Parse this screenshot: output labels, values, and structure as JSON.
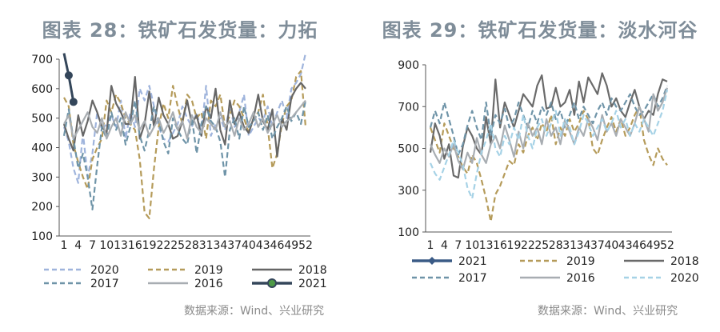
{
  "chart_data": [
    {
      "type": "line",
      "title": "图表 28：铁矿石发货量：力拓",
      "ylim": [
        100,
        700
      ],
      "yticks": [
        100,
        200,
        300,
        400,
        500,
        600,
        700
      ],
      "xticks": [
        "1",
        "4",
        "7",
        "10",
        "13",
        "16",
        "19",
        "22",
        "25",
        "28",
        "31",
        "34",
        "37",
        "40",
        "43",
        "46",
        "49",
        "52"
      ],
      "grid": false,
      "legend_position": "bottom",
      "source": "数据来源：Wind、兴业研究",
      "series": [
        {
          "name": "2020",
          "color": "#9fb4dc",
          "style": "dashed",
          "marker": false,
          "values": [
            470,
            420,
            330,
            280,
            450,
            300,
            380,
            520,
            460,
            480,
            510,
            470,
            560,
            430,
            520,
            470,
            600,
            560,
            610,
            540,
            470,
            430,
            420,
            450,
            480,
            540,
            500,
            470,
            520,
            450,
            610,
            440,
            480,
            500,
            460,
            540,
            470,
            520,
            580,
            440,
            470,
            500,
            490,
            540,
            470,
            520,
            560,
            500,
            600,
            620,
            650,
            720
          ]
        },
        {
          "name": "2019",
          "color": "#b59b5a",
          "style": "dashed",
          "marker": false,
          "values": [
            570,
            540,
            410,
            350,
            300,
            260,
            360,
            400,
            430,
            560,
            520,
            580,
            550,
            500,
            480,
            460,
            360,
            180,
            160,
            330,
            470,
            550,
            500,
            610,
            540,
            480,
            580,
            560,
            500,
            520,
            430,
            560,
            540,
            580,
            470,
            510,
            560,
            540,
            500,
            450,
            500,
            520,
            580,
            470,
            330,
            380,
            480,
            540,
            560,
            640,
            660,
            470
          ]
        },
        {
          "name": "2018",
          "color": "#666666",
          "style": "solid",
          "marker": false,
          "values": [
            480,
            430,
            390,
            510,
            440,
            490,
            560,
            520,
            470,
            450,
            610,
            550,
            520,
            480,
            480,
            640,
            430,
            480,
            590,
            470,
            570,
            510,
            480,
            430,
            440,
            490,
            560,
            480,
            510,
            440,
            540,
            500,
            600,
            460,
            410,
            560,
            480,
            520,
            470,
            450,
            500,
            580,
            490,
            460,
            530,
            370,
            500,
            460,
            570,
            600,
            620,
            600
          ]
        },
        {
          "name": "2017",
          "color": "#6f94a8",
          "style": "dashed",
          "marker": false,
          "values": [
            440,
            530,
            430,
            330,
            380,
            300,
            190,
            340,
            470,
            430,
            520,
            460,
            500,
            410,
            470,
            560,
            440,
            390,
            460,
            540,
            490,
            420,
            380,
            500,
            460,
            430,
            410,
            500,
            380,
            480,
            540,
            490,
            470,
            420,
            300,
            460,
            500,
            430,
            540,
            470,
            490,
            520,
            460,
            510,
            430,
            470,
            500,
            540,
            490,
            520,
            480,
            560
          ]
        },
        {
          "name": "2016",
          "color": "#a8adb2",
          "style": "solid",
          "marker": false,
          "values": [
            480,
            510,
            430,
            460,
            490,
            520,
            470,
            450,
            500,
            430,
            470,
            500,
            440,
            520,
            480,
            510,
            460,
            490,
            440,
            470,
            500,
            450,
            480,
            520,
            460,
            490,
            430,
            510,
            470,
            450,
            500,
            480,
            460,
            520,
            470,
            490,
            440,
            500,
            460,
            480,
            520,
            470,
            500,
            450,
            480,
            510,
            470,
            490,
            500,
            520,
            540,
            560
          ]
        },
        {
          "name": "2021",
          "color": "#34465a",
          "style": "solid",
          "marker": true,
          "values": [
            720,
            645,
            555
          ]
        }
      ]
    },
    {
      "type": "line",
      "title": "图表 29：铁矿石发货量：淡水河谷",
      "ylim": [
        100,
        900
      ],
      "yticks": [
        100,
        300,
        500,
        700,
        900
      ],
      "xticks": [
        "1",
        "4",
        "7",
        "10",
        "13",
        "16",
        "19",
        "22",
        "25",
        "28",
        "31",
        "34",
        "37",
        "40",
        "43",
        "46",
        "49",
        "52"
      ],
      "grid": false,
      "legend_position": "bottom",
      "source": "数据来源：Wind、兴业研究",
      "series": [
        {
          "name": "2021",
          "color": "#3a5b86",
          "style": "solid",
          "marker": true,
          "values": []
        },
        {
          "name": "2019",
          "color": "#b59b5a",
          "style": "dashed",
          "marker": false,
          "values": [
            600,
            540,
            480,
            620,
            560,
            500,
            460,
            410,
            380,
            470,
            430,
            350,
            260,
            150,
            280,
            320,
            380,
            440,
            420,
            520,
            480,
            560,
            600,
            540,
            620,
            580,
            660,
            520,
            600,
            560,
            640,
            580,
            620,
            680,
            640,
            500,
            470,
            540,
            600,
            650,
            580,
            640,
            560,
            600,
            660,
            700,
            540,
            470,
            420,
            500,
            450,
            420
          ]
        },
        {
          "name": "2018",
          "color": "#6a6a6a",
          "style": "solid",
          "marker": false,
          "values": [
            480,
            620,
            560,
            450,
            520,
            370,
            360,
            510,
            600,
            560,
            500,
            470,
            650,
            520,
            830,
            600,
            720,
            660,
            600,
            680,
            760,
            730,
            700,
            800,
            850,
            690,
            700,
            790,
            700,
            720,
            780,
            660,
            820,
            720,
            840,
            800,
            760,
            860,
            800,
            700,
            740,
            680,
            650,
            720,
            780,
            700,
            640,
            680,
            660,
            760,
            830,
            820
          ]
        },
        {
          "name": "2017",
          "color": "#6f94a8",
          "style": "dashed",
          "marker": false,
          "values": [
            600,
            680,
            620,
            720,
            640,
            560,
            470,
            520,
            610,
            680,
            600,
            540,
            720,
            560,
            660,
            620,
            690,
            600,
            640,
            720,
            660,
            600,
            680,
            620,
            700,
            660,
            720,
            640,
            680,
            600,
            660,
            720,
            640,
            700,
            660,
            620,
            680,
            720,
            660,
            740,
            700,
            680,
            720,
            760,
            700,
            660,
            680,
            720,
            760,
            700,
            740,
            800
          ]
        },
        {
          "name": "2016",
          "color": "#a8adb2",
          "style": "solid",
          "marker": false,
          "values": [
            520,
            470,
            430,
            500,
            460,
            520,
            440,
            400,
            480,
            430,
            550,
            470,
            430,
            520,
            560,
            500,
            610,
            540,
            460,
            580,
            500,
            620,
            560,
            600,
            520,
            640,
            560,
            600,
            520,
            640,
            580,
            520,
            600,
            560,
            640,
            600,
            540,
            660,
            580,
            620,
            560,
            640,
            600,
            560,
            620,
            700,
            640,
            580,
            760,
            680,
            720,
            790
          ]
        },
        {
          "name": "2020",
          "color": "#a6d2e6",
          "style": "dashed",
          "marker": false,
          "values": [
            430,
            380,
            350,
            410,
            470,
            540,
            480,
            420,
            310,
            260,
            380,
            480,
            540,
            620,
            500,
            460,
            560,
            520,
            600,
            540,
            660,
            560,
            500,
            600,
            640,
            560,
            620,
            680,
            560,
            640,
            600,
            520,
            580,
            660,
            620,
            560,
            600,
            640,
            580,
            620,
            680,
            600,
            640,
            560,
            620,
            580,
            640,
            600,
            560,
            620,
            680,
            780
          ]
        }
      ]
    }
  ]
}
